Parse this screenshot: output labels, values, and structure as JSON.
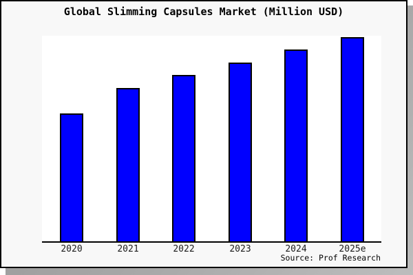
{
  "title": "Global Slimming Capsules Market (Million USD)",
  "source": "Source: Prof Research",
  "colors": {
    "bar_fill": "#0000ff",
    "bar_border": "#000000",
    "panel_background": "#f8f8f8",
    "plot_background": "#ffffff",
    "axis": "#000000",
    "panel_border": "#000000",
    "shadow": "#a0a0a0"
  },
  "chart_data": {
    "type": "bar",
    "title": "Global Slimming Capsules Market (Million USD)",
    "categories": [
      "2020",
      "2021",
      "2022",
      "2023",
      "2024",
      "2025e"
    ],
    "values": [
      188,
      225,
      244,
      262,
      281,
      299
    ],
    "xlabel": "",
    "ylabel": "",
    "ylim": [
      0,
      301
    ],
    "grid": false,
    "legend": false,
    "y_axis_shown": false,
    "bar_color": "#0000ff",
    "source": "Source: Prof Research"
  }
}
